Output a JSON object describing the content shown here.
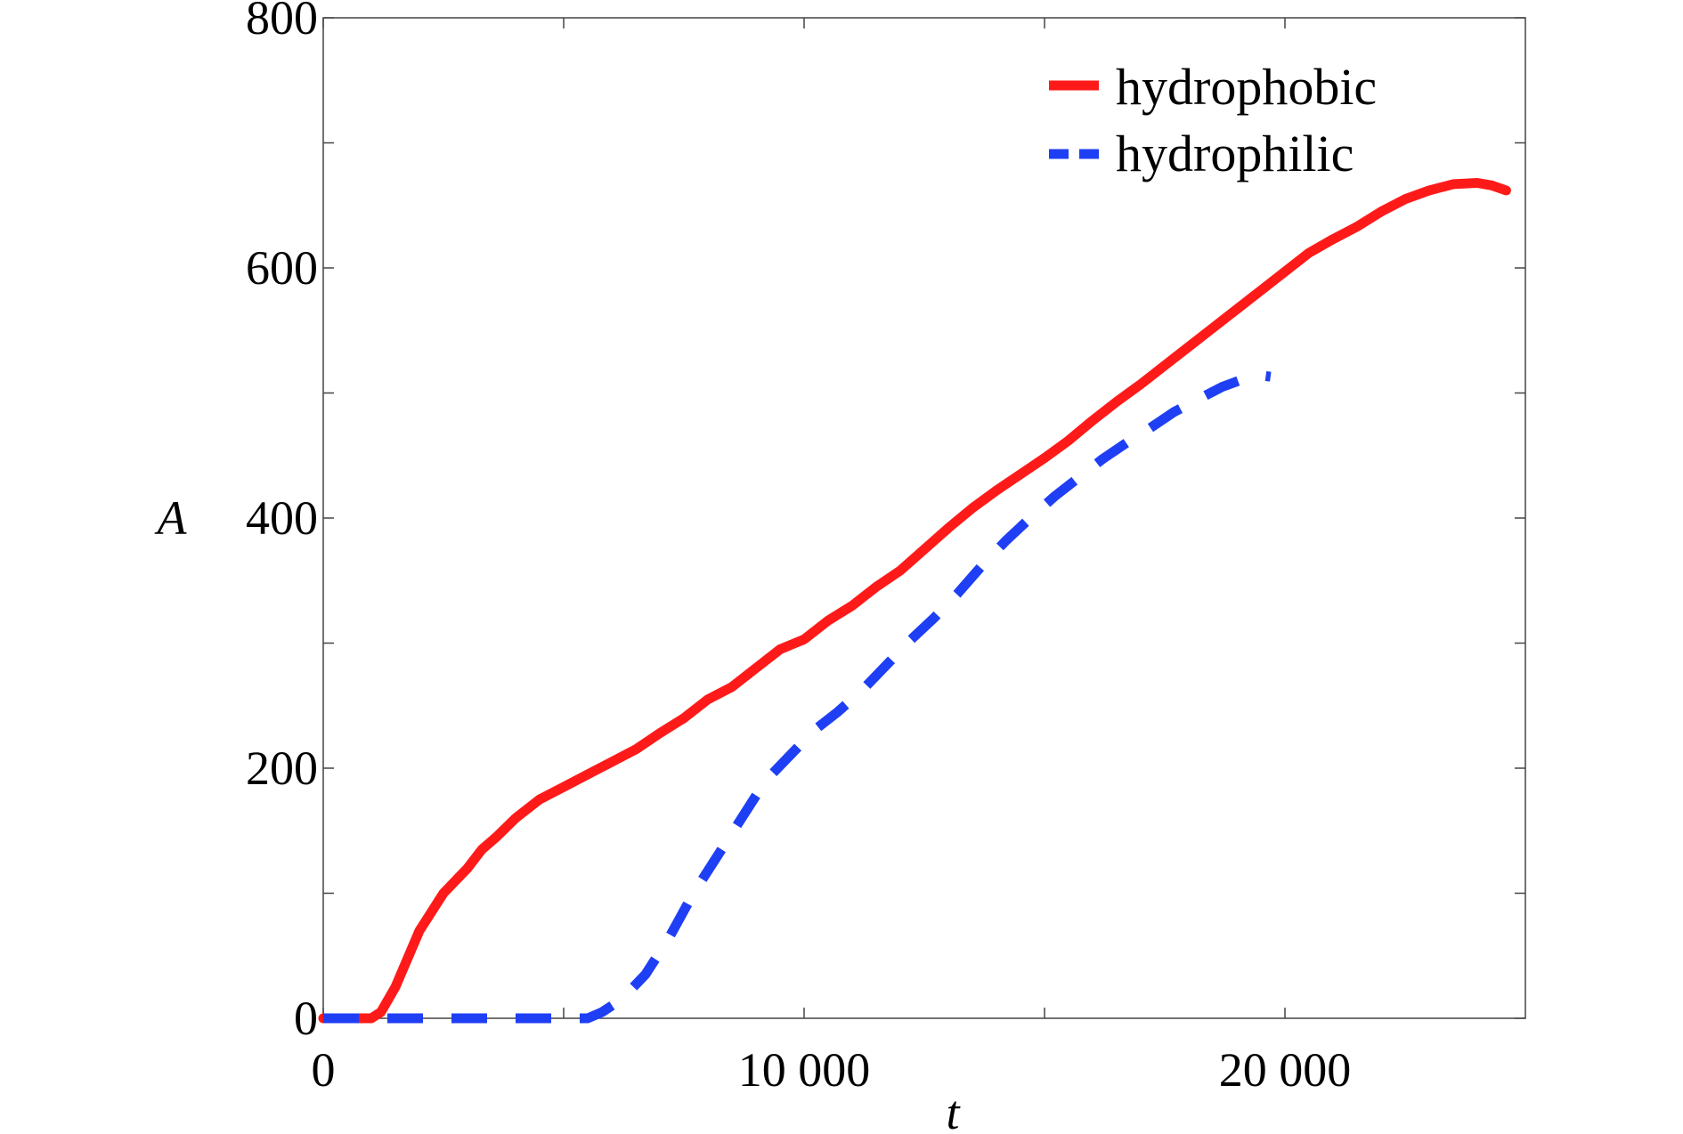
{
  "chart_data": {
    "type": "line",
    "xlabel": "t",
    "ylabel": "A",
    "xlim": [
      0,
      25000
    ],
    "ylim": [
      0,
      800
    ],
    "xticks": [
      0,
      10000,
      20000
    ],
    "xtick_labels": [
      "0",
      "10 000",
      "20 000"
    ],
    "xminor_ticks": [
      5000,
      15000
    ],
    "yticks": [
      0,
      200,
      400,
      600,
      800
    ],
    "ytick_labels": [
      "0",
      "200",
      "400",
      "600",
      "800"
    ],
    "yminor_ticks": [
      100,
      300,
      500,
      700
    ],
    "grid": false,
    "legend_position": "top-right",
    "series": [
      {
        "name": "hydrophobic",
        "color": "#ff1a1a",
        "style": "solid",
        "x": [
          0,
          1000,
          1200,
          1500,
          2000,
          2500,
          3000,
          3300,
          3600,
          4000,
          4500,
          5000,
          5500,
          6000,
          6500,
          7000,
          7500,
          8000,
          8500,
          9000,
          9500,
          10000,
          10500,
          11000,
          11500,
          12000,
          12500,
          13000,
          13500,
          14000,
          14500,
          15000,
          15500,
          16000,
          16500,
          17000,
          17500,
          18000,
          18500,
          19000,
          19500,
          20000,
          20500,
          21000,
          21500,
          22000,
          22500,
          23000,
          23500,
          24000,
          24300,
          24600
        ],
        "y": [
          0,
          0,
          5,
          25,
          70,
          100,
          120,
          135,
          145,
          160,
          175,
          185,
          195,
          205,
          215,
          228,
          240,
          255,
          265,
          280,
          295,
          303,
          318,
          330,
          345,
          358,
          375,
          392,
          408,
          422,
          435,
          448,
          462,
          478,
          493,
          507,
          522,
          537,
          552,
          567,
          582,
          597,
          612,
          623,
          633,
          645,
          655,
          662,
          667,
          668,
          666,
          662
        ]
      },
      {
        "name": "hydrophilic",
        "color": "#1f3ff5",
        "style": "dashed",
        "x": [
          0,
          5500,
          5800,
          6200,
          6700,
          7200,
          7700,
          8200,
          8700,
          9200,
          9700,
          10200,
          10700,
          11200,
          11700,
          12200,
          12700,
          13200,
          13700,
          14200,
          14700,
          15200,
          15700,
          16200,
          16700,
          17200,
          17700,
          18200,
          18700,
          19200,
          19500,
          19700
        ],
        "y": [
          0,
          0,
          5,
          15,
          35,
          65,
          100,
          130,
          160,
          190,
          210,
          230,
          245,
          262,
          282,
          302,
          320,
          340,
          362,
          382,
          400,
          417,
          432,
          447,
          460,
          472,
          485,
          495,
          505,
          512,
          514,
          513
        ]
      }
    ]
  }
}
